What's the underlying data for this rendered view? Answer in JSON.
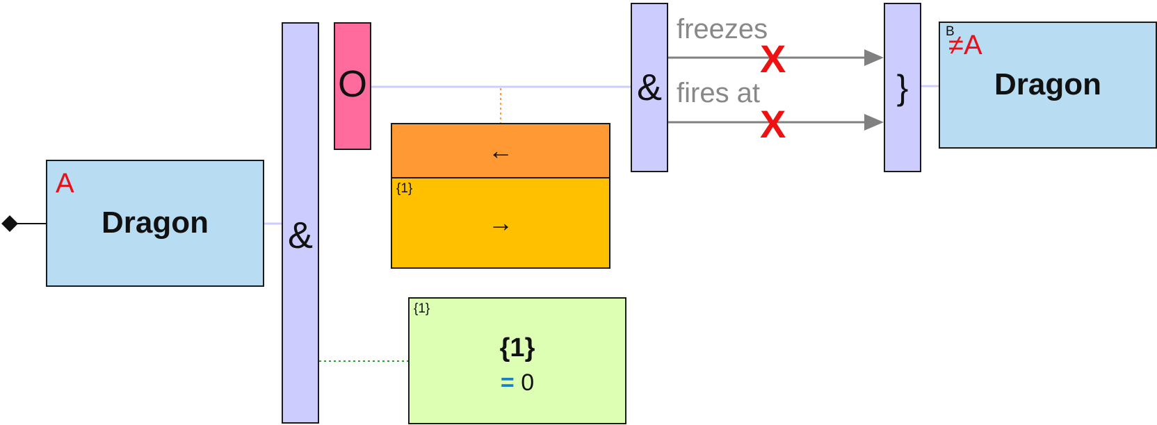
{
  "left_entity": {
    "var": "A",
    "name": "Dragon"
  },
  "and_bar_left": {
    "symbol": "&"
  },
  "or_block": {
    "symbol": "O"
  },
  "and_bar_mid": {
    "symbol": "&"
  },
  "relations": [
    {
      "label": "freezes",
      "negated_mark": "X"
    },
    {
      "label": "fires at",
      "negated_mark": "X"
    }
  ],
  "brace_bar": {
    "symbol": "}"
  },
  "right_entity": {
    "var_sup": "B",
    "var": "≠A",
    "name": "Dragon"
  },
  "direction_box": {
    "top_arrow": "←",
    "count_label": "{1}",
    "bottom_arrow": "→"
  },
  "count_box": {
    "corner_label": "{1}",
    "title": "{1}",
    "eq_symbol": "=",
    "value": "0"
  },
  "colors": {
    "entity": "#b8dcf2",
    "bar": "#ccccff",
    "or_block": "#ff6b9d",
    "direction_top": "#ff9933",
    "direction_bottom": "#ffc000",
    "count_box": "#ddffb3",
    "variable": "#e8101a",
    "relation_arrow": "#808080",
    "negation": "#ee1111"
  }
}
